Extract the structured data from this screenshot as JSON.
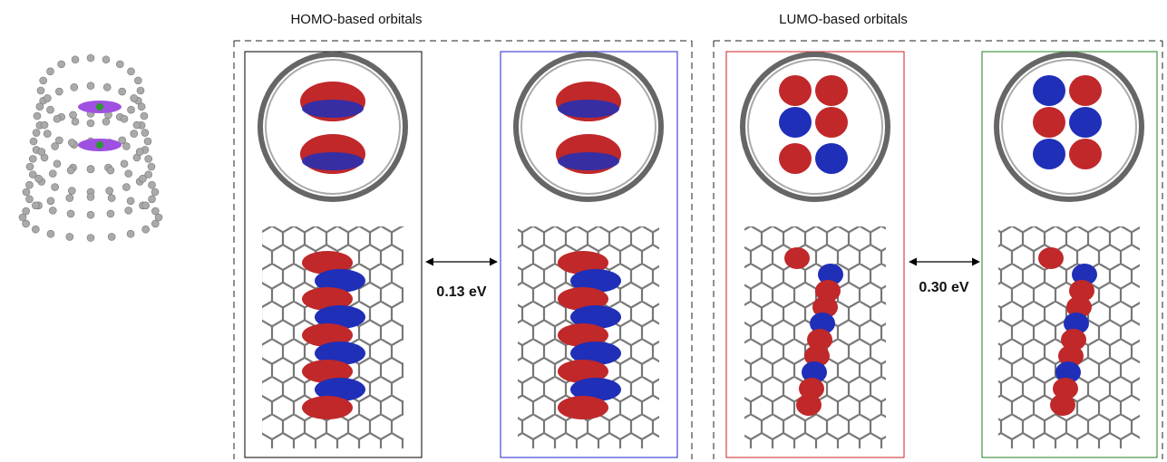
{
  "groups": [
    {
      "title": "HOMO-based orbitals",
      "gap": "0.13 eV"
    },
    {
      "title": "LUMO-based orbitals",
      "gap": "0.30 eV"
    }
  ]
}
